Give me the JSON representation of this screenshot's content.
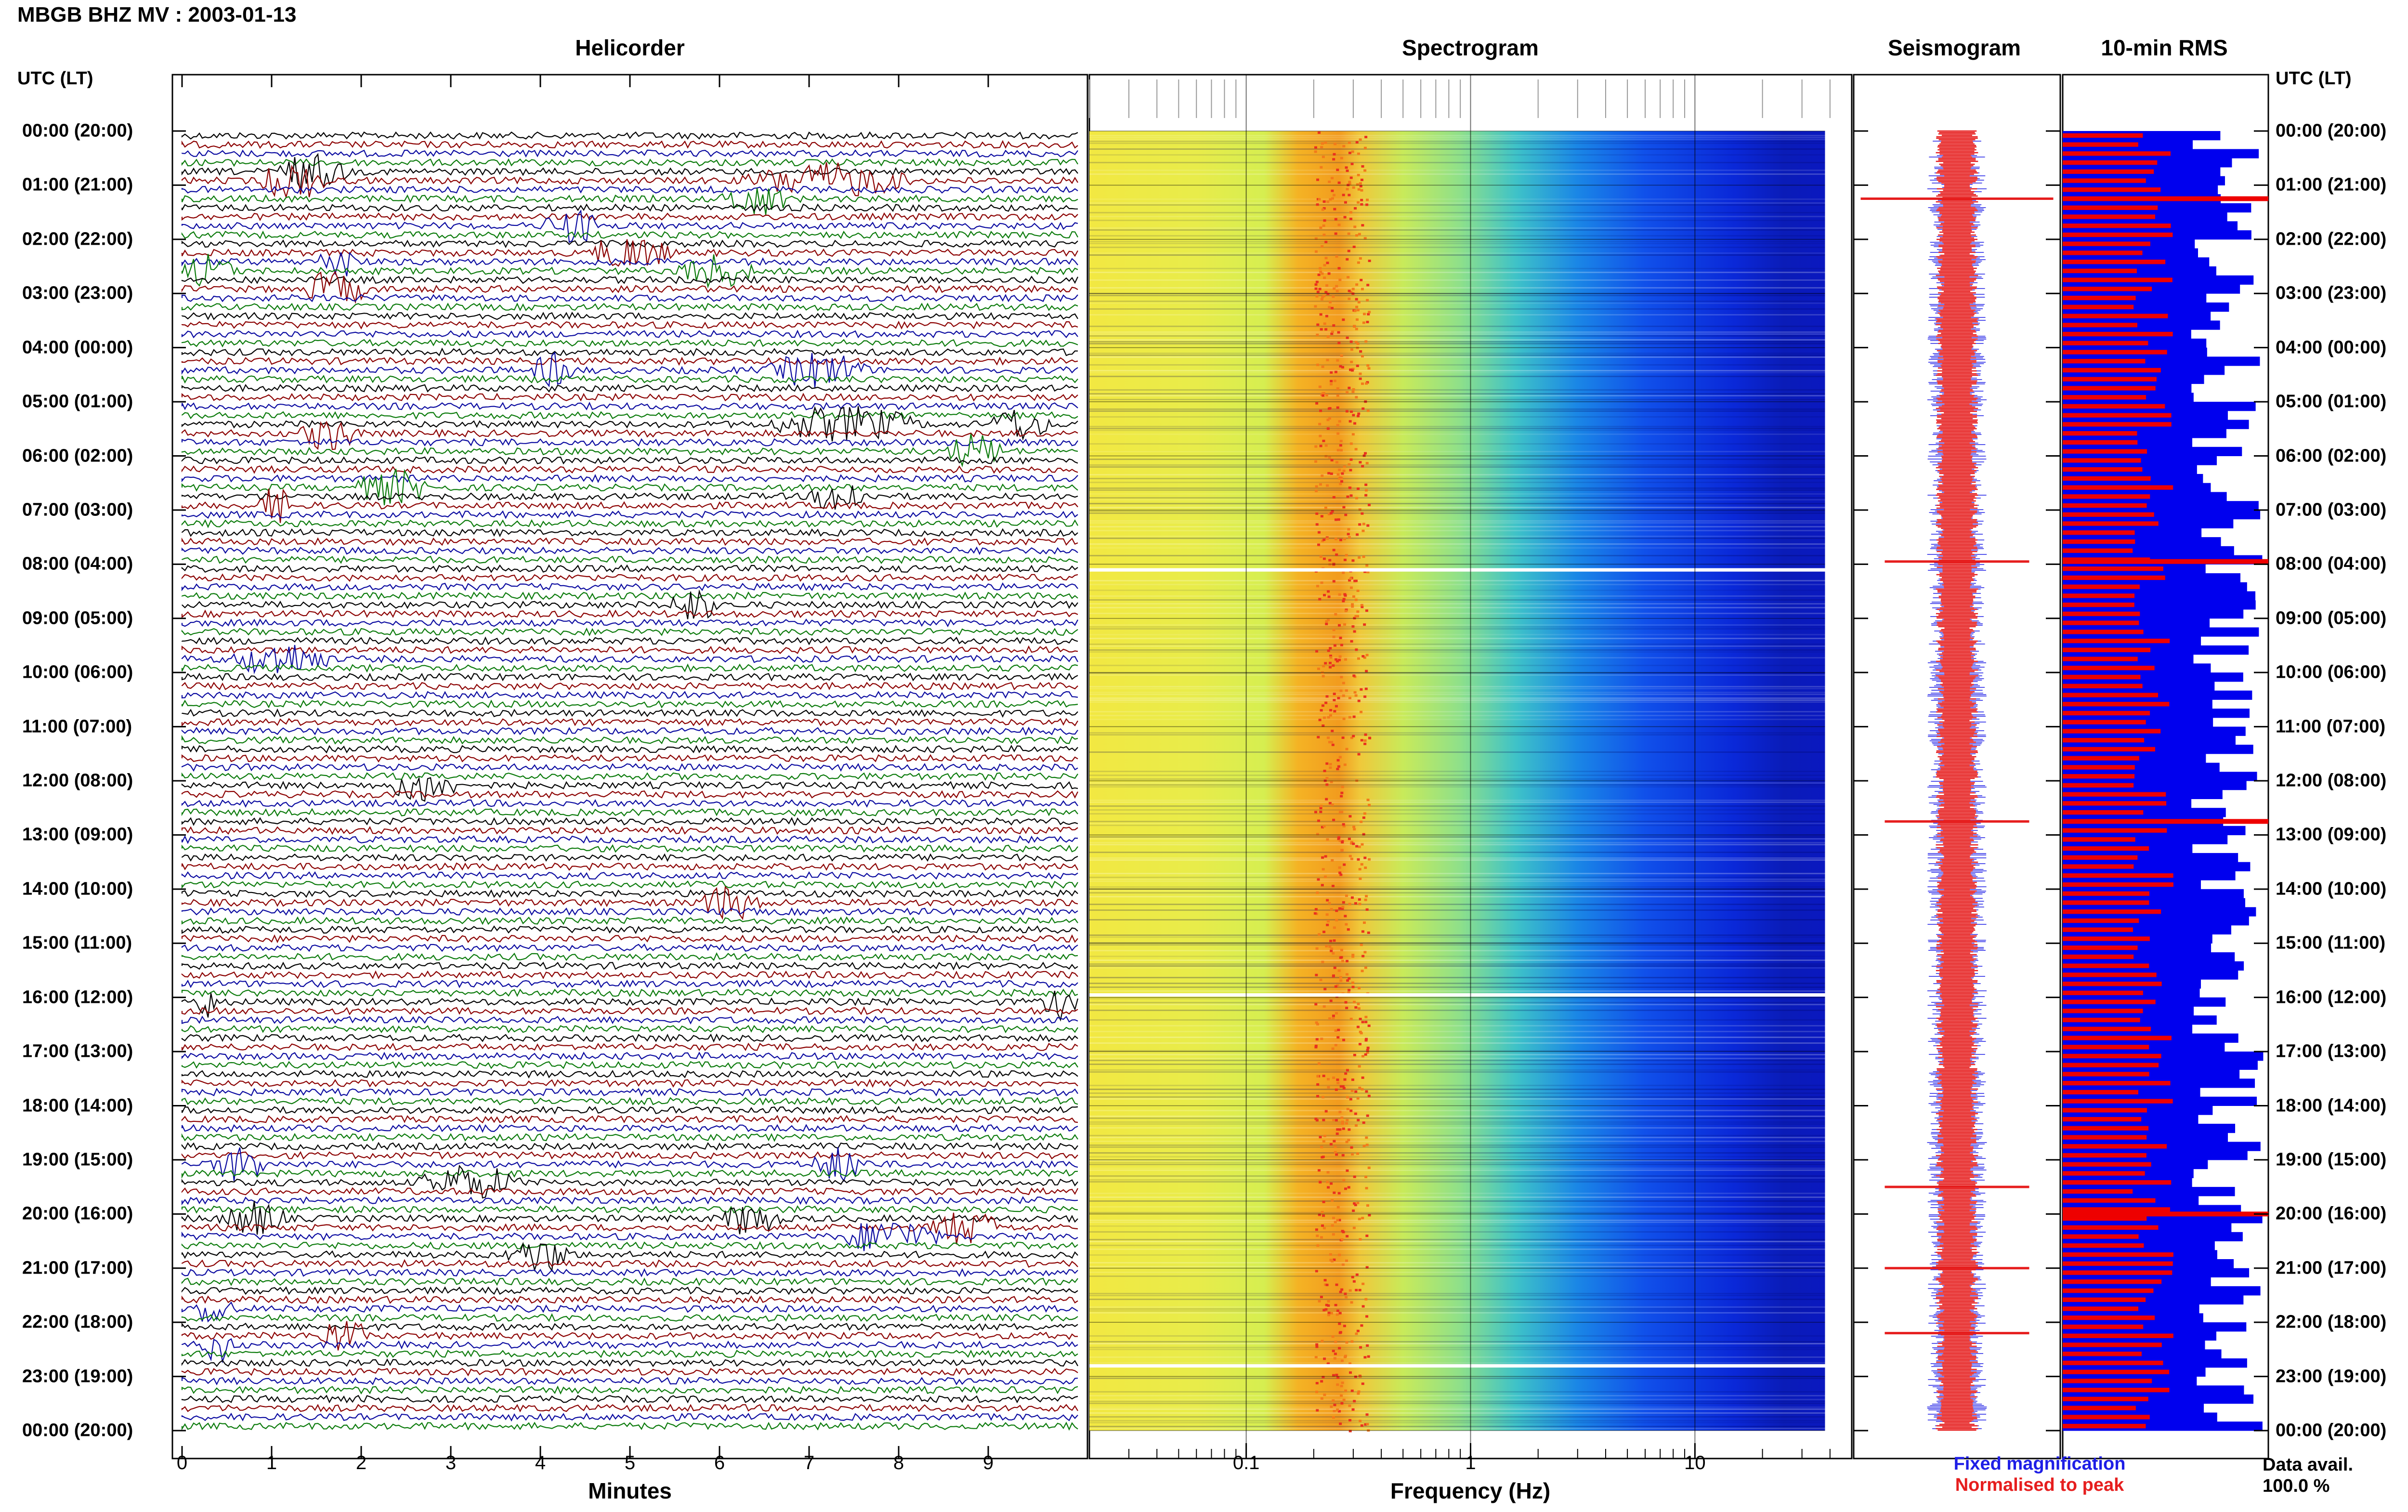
{
  "header": {
    "title": "MBGB BHZ MV : 2003-01-13"
  },
  "panels": {
    "helicorder": "Helicorder",
    "spectrogram": "Spectrogram",
    "seismogram": "Seismogram",
    "rms": "10-min RMS"
  },
  "time_axis": {
    "header_left": "UTC (LT)",
    "header_right": "UTC (LT)",
    "labels": [
      "00:00 (20:00)",
      "01:00 (21:00)",
      "02:00 (22:00)",
      "03:00 (23:00)",
      "04:00 (00:00)",
      "05:00 (01:00)",
      "06:00 (02:00)",
      "07:00 (03:00)",
      "08:00 (04:00)",
      "09:00 (05:00)",
      "10:00 (06:00)",
      "11:00 (07:00)",
      "12:00 (08:00)",
      "13:00 (09:00)",
      "14:00 (10:00)",
      "15:00 (11:00)",
      "16:00 (12:00)",
      "17:00 (13:00)",
      "18:00 (14:00)",
      "19:00 (15:00)",
      "20:00 (16:00)",
      "21:00 (17:00)",
      "22:00 (18:00)",
      "23:00 (19:00)",
      "00:00 (20:00)"
    ]
  },
  "legend": {
    "fixed": "Fixed magnification",
    "normalised": "Normalised to peak",
    "avail_label": "Data avail.",
    "avail_value": "100.0 %"
  },
  "colors": {
    "black": "#000000",
    "red": "#8b0000",
    "blue": "#0a0aa0",
    "green": "#0a7a0a",
    "fixed": "#1e1ee6",
    "normalised": "#e61e1e",
    "rms_blue": "#0000ee",
    "rms_red": "#ee0000"
  },
  "chart_data": [
    {
      "type": "line",
      "name": "helicorder",
      "title": "Helicorder",
      "xlabel": "Minutes",
      "xlim": [
        0,
        10
      ],
      "xticks": [
        0,
        1,
        2,
        3,
        4,
        5,
        6,
        7,
        8,
        9
      ],
      "lines_per_hour": 6,
      "line_colors_cycle": [
        "black",
        "red",
        "blue",
        "green"
      ],
      "events": [
        {
          "line": 4,
          "x": 1.0,
          "w": 0.9
        },
        {
          "line": 5,
          "x": 6.2,
          "w": 2.0
        },
        {
          "line": 5,
          "x": 0.8,
          "w": 0.9
        },
        {
          "line": 7,
          "x": 6.0,
          "w": 0.8
        },
        {
          "line": 10,
          "x": 4.0,
          "w": 0.7
        },
        {
          "line": 13,
          "x": 4.5,
          "w": 1.0
        },
        {
          "line": 14,
          "x": 1.5,
          "w": 0.5
        },
        {
          "line": 15,
          "x": 0.0,
          "w": 0.6
        },
        {
          "line": 15,
          "x": 5.5,
          "w": 0.9
        },
        {
          "line": 17,
          "x": 1.3,
          "w": 0.8
        },
        {
          "line": 26,
          "x": 3.9,
          "w": 0.5
        },
        {
          "line": 26,
          "x": 6.5,
          "w": 1.2
        },
        {
          "line": 32,
          "x": 6.5,
          "w": 1.8
        },
        {
          "line": 32,
          "x": 9.0,
          "w": 0.7
        },
        {
          "line": 33,
          "x": 1.3,
          "w": 0.7
        },
        {
          "line": 35,
          "x": 8.5,
          "w": 0.7
        },
        {
          "line": 39,
          "x": 1.9,
          "w": 0.9
        },
        {
          "line": 40,
          "x": 7.0,
          "w": 0.7
        },
        {
          "line": 41,
          "x": 0.8,
          "w": 0.5
        },
        {
          "line": 58,
          "x": 0.5,
          "w": 1.2
        },
        {
          "line": 52,
          "x": 5.4,
          "w": 0.6
        },
        {
          "line": 72,
          "x": 2.3,
          "w": 0.8
        },
        {
          "line": 85,
          "x": 5.7,
          "w": 0.8
        },
        {
          "line": 96,
          "x": 0.1,
          "w": 0.3
        },
        {
          "line": 96,
          "x": 9.6,
          "w": 0.4
        },
        {
          "line": 114,
          "x": 0.3,
          "w": 0.7
        },
        {
          "line": 114,
          "x": 7.0,
          "w": 0.7
        },
        {
          "line": 116,
          "x": 2.6,
          "w": 1.2
        },
        {
          "line": 120,
          "x": 0.4,
          "w": 0.8
        },
        {
          "line": 120,
          "x": 6.0,
          "w": 0.7
        },
        {
          "line": 121,
          "x": 8.3,
          "w": 0.9
        },
        {
          "line": 122,
          "x": 7.3,
          "w": 1.2
        },
        {
          "line": 124,
          "x": 3.6,
          "w": 0.8
        },
        {
          "line": 130,
          "x": 0.1,
          "w": 0.5
        },
        {
          "line": 133,
          "x": 1.5,
          "w": 0.6
        },
        {
          "line": 134,
          "x": 0.2,
          "w": 0.4
        }
      ]
    },
    {
      "type": "heatmap",
      "name": "spectrogram",
      "title": "Spectrogram",
      "xlabel": "Frequency (Hz)",
      "xscale": "log",
      "xlim": [
        0.02,
        50
      ],
      "xticks": [
        0.1,
        1,
        10
      ],
      "xtick_labels": [
        "0.1",
        "1",
        "10"
      ],
      "data_max_hz": 38,
      "peak_band_hz": [
        0.2,
        0.35
      ],
      "white_gap_hours": [
        8.1,
        15.95,
        22.8
      ]
    },
    {
      "type": "line",
      "name": "seismogram",
      "title": "Seismogram",
      "series": [
        {
          "name": "Fixed magnification",
          "color": "blue"
        },
        {
          "name": "Normalised to peak",
          "color": "red"
        }
      ],
      "spikes_hours": [
        1.25,
        7.95,
        12.75,
        19.5,
        21.0,
        22.2
      ]
    },
    {
      "type": "bar",
      "name": "10-min RMS",
      "title": "10-min RMS",
      "series": [
        {
          "name": "Fixed magnification",
          "color": "blue"
        },
        {
          "name": "Normalised to peak",
          "color": "red"
        }
      ],
      "bins_per_hour": 6,
      "bins": 144
    }
  ]
}
